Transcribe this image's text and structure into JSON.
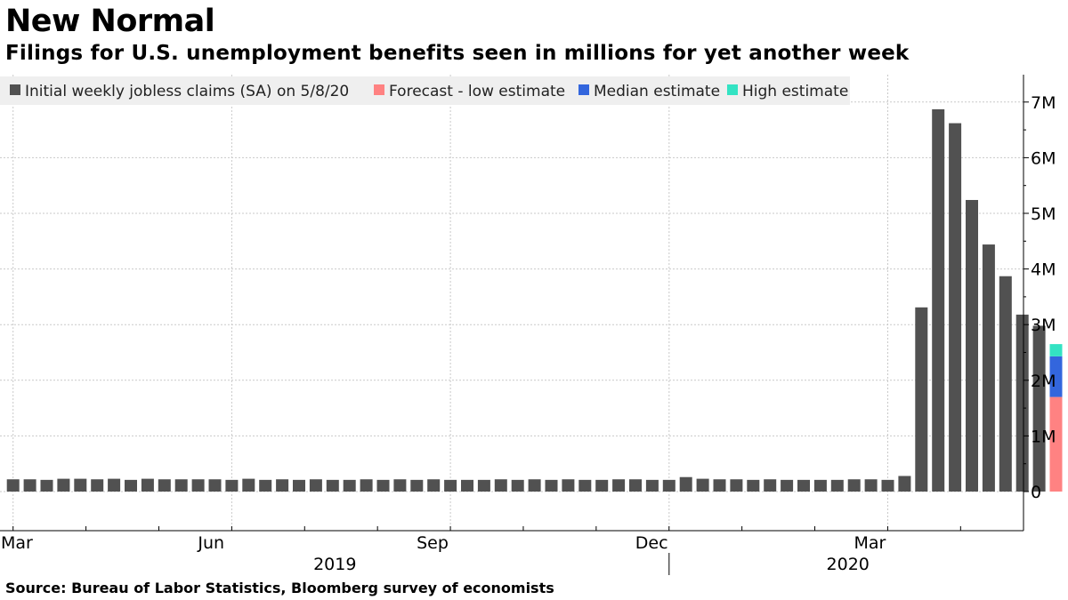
{
  "title": "New Normal",
  "subtitle": "Filings for U.S. unemployment benefits seen in millions for yet another week",
  "source": "Source: Bureau of Labor Statistics, Bloomberg survey of economists",
  "colors": {
    "actual": "#515151",
    "low": "#ff8282",
    "median": "#3366dd",
    "high": "#33e3c3",
    "grid": "#c9c9c9",
    "legend_bg": "#efefef"
  },
  "chart_data": {
    "type": "bar",
    "title": "New Normal",
    "subtitle": "Filings for U.S. unemployment benefits seen in millions for yet another week",
    "ylabel": "",
    "xlabel": "",
    "ylim": [
      -0.7,
      7.5
    ],
    "y_unit": "millions",
    "y_ticks": [
      0,
      1,
      2,
      3,
      4,
      5,
      6,
      7
    ],
    "y_tick_labels": [
      "0",
      "1M",
      "2M",
      "3M",
      "4M",
      "5M",
      "6M",
      "7M"
    ],
    "grid": true,
    "legend_position": "top-left",
    "legend": [
      {
        "label": "Initial weekly jobless claims (SA) on 5/8/20",
        "color": "#515151"
      },
      {
        "label": "Forecast - low estimate",
        "color": "#ff8282"
      },
      {
        "label": "Median estimate",
        "color": "#3366dd"
      },
      {
        "label": "High estimate",
        "color": "#33e3c3"
      }
    ],
    "x_month_labels": [
      {
        "label": "Mar",
        "week_index": 0
      },
      {
        "label": "Jun",
        "week_index": 13
      },
      {
        "label": "Sep",
        "week_index": 26
      },
      {
        "label": "Dec",
        "week_index": 39
      },
      {
        "label": "Mar",
        "week_index": 52
      }
    ],
    "year_labels": [
      {
        "label": "2019",
        "center_week": 19.5
      },
      {
        "label": "2020",
        "center_week": 50
      }
    ],
    "year_divider_week": 39,
    "series": [
      {
        "name": "Initial weekly jobless claims (SA) on 5/8/20",
        "values": [
          0.22,
          0.22,
          0.21,
          0.23,
          0.23,
          0.22,
          0.23,
          0.21,
          0.23,
          0.22,
          0.22,
          0.22,
          0.22,
          0.21,
          0.23,
          0.21,
          0.22,
          0.21,
          0.22,
          0.21,
          0.21,
          0.22,
          0.21,
          0.22,
          0.21,
          0.22,
          0.21,
          0.21,
          0.21,
          0.22,
          0.21,
          0.22,
          0.21,
          0.22,
          0.21,
          0.21,
          0.22,
          0.22,
          0.21,
          0.21,
          0.26,
          0.23,
          0.22,
          0.22,
          0.21,
          0.22,
          0.21,
          0.21,
          0.21,
          0.21,
          0.22,
          0.22,
          0.21,
          0.28,
          3.31,
          6.87,
          6.62,
          5.24,
          4.44,
          3.87,
          3.18,
          2.98
        ]
      },
      {
        "name": "Forecast",
        "week_index": 62,
        "low_estimate": 1.7,
        "median_estimate": 2.43,
        "high_estimate": 2.65
      }
    ]
  }
}
